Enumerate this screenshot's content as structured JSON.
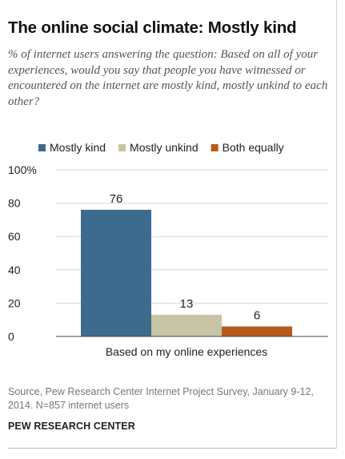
{
  "header": {
    "title": "The online social climate: Mostly kind",
    "subtitle": "% of internet users answering the question: Based on all of your experiences, would you say that people you have witnessed or encountered on the internet are mostly kind, mostly unkind to each other?"
  },
  "footer": {
    "source": "Source, Pew Research Center Internet Project Survey, January 9-12, 2014. N=857 internet users",
    "org": "PEW RESEARCH CENTER"
  },
  "chart_data": {
    "type": "bar",
    "title": "The online social climate: Mostly kind",
    "categories": [
      "Based on my online experiences"
    ],
    "series": [
      {
        "name": "Mostly kind",
        "values": [
          76
        ],
        "color": "#3d6b8e"
      },
      {
        "name": "Mostly unkind",
        "values": [
          13
        ],
        "color": "#c9c4a5"
      },
      {
        "name": "Both equally",
        "values": [
          6
        ],
        "color": "#b85a1a"
      }
    ],
    "ylim": [
      0,
      100
    ],
    "yticks": [
      0,
      20,
      40,
      60,
      80,
      100
    ],
    "ytick_labels": [
      "0",
      "20",
      "40",
      "60",
      "80",
      "100%"
    ],
    "grid": true,
    "legend": "top",
    "xlabel": "",
    "ylabel": ""
  }
}
